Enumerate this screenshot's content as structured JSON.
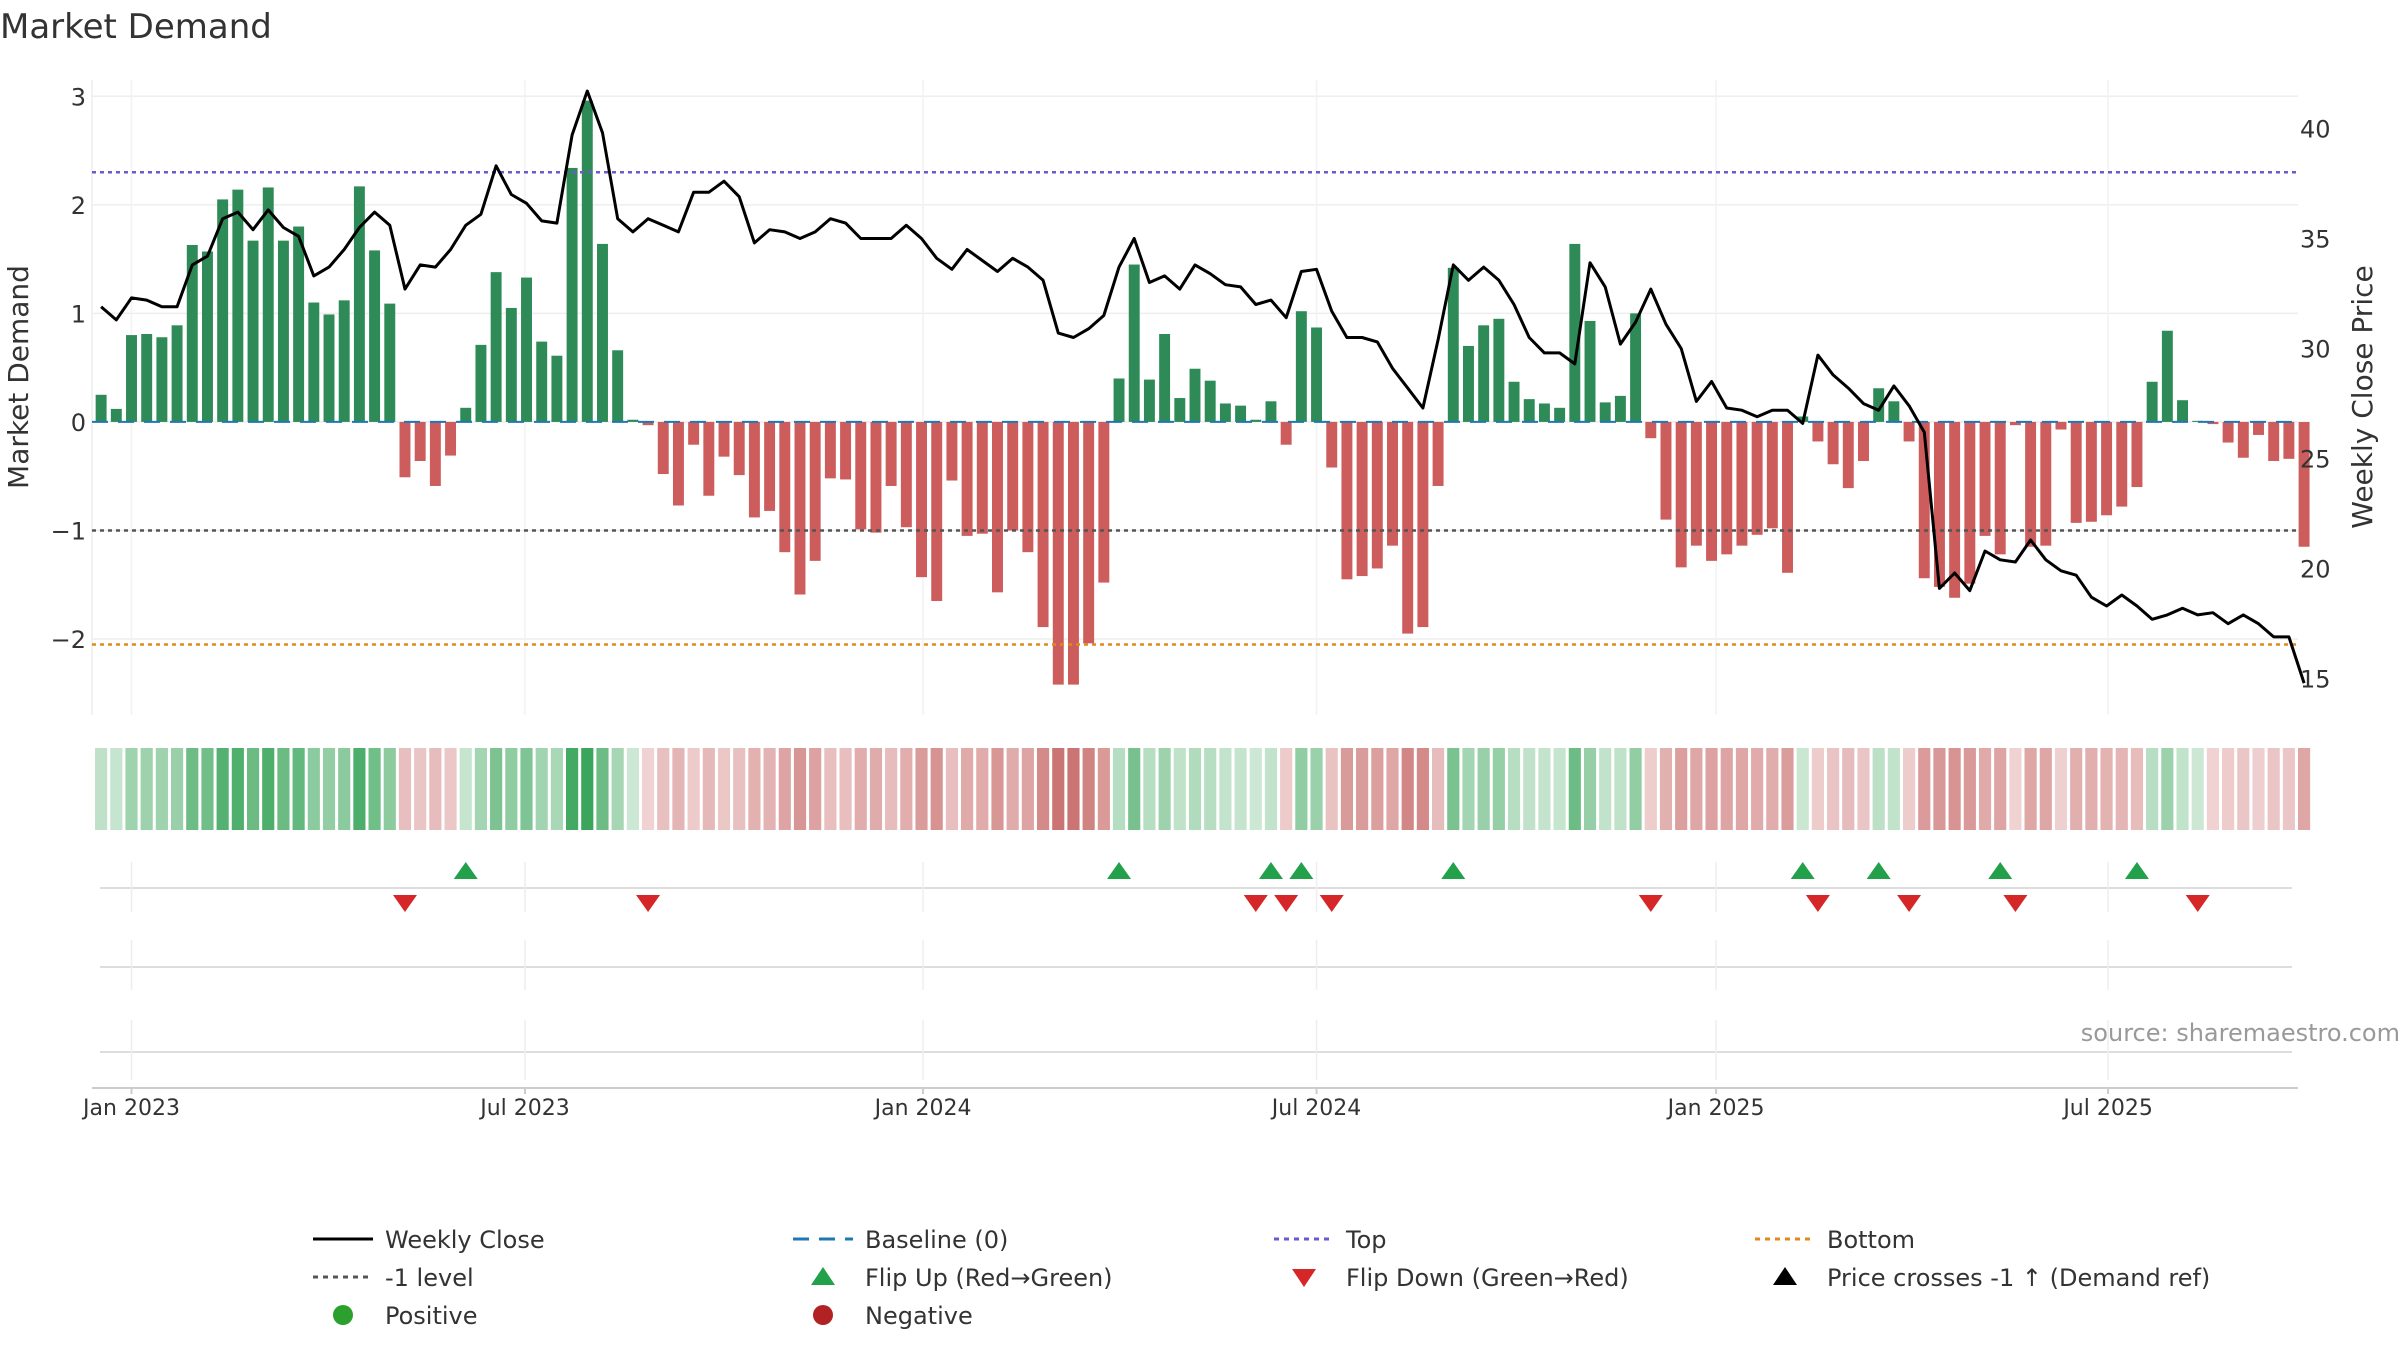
{
  "chart_data": {
    "type": "bar",
    "title": "Market Demand",
    "ylabel_left": "Market Demand",
    "ylabel_right": "Weekly Close Price",
    "source": "source: sharemaestro.com",
    "ylim_left": [
      -2.7,
      3.15
    ],
    "yticks_left": [
      3,
      2,
      1,
      0,
      -1,
      -2
    ],
    "ytick_labels_left": [
      "3",
      "2",
      "1",
      "0",
      "−1",
      "−2"
    ],
    "ylim_right": [
      13.35,
      42.2
    ],
    "yticks_right": [
      40,
      35,
      30,
      25,
      20,
      15
    ],
    "ytick_labels_right": [
      "40",
      "35",
      "30",
      "25",
      "20",
      "15"
    ],
    "x_start_week": -2,
    "x_range_weeks": [
      -2.6,
      142.6
    ],
    "x_ticks": [
      {
        "label": "Jan 2023",
        "week": 0
      },
      {
        "label": "Jul 2023",
        "week": 25.9
      },
      {
        "label": "Jan 2024",
        "week": 52.1
      },
      {
        "label": "Jul 2024",
        "week": 78
      },
      {
        "label": "Jan 2025",
        "week": 104.3
      },
      {
        "label": "Jul 2025",
        "week": 130.1
      }
    ],
    "reference_lines": {
      "top": 2.3,
      "bottom": -2.05,
      "minus_one": -1,
      "baseline": 0
    },
    "demand": [
      0.25,
      0.12,
      0.8,
      0.81,
      0.78,
      0.89,
      1.63,
      1.57,
      2.05,
      2.14,
      1.67,
      2.16,
      1.67,
      1.8,
      1.1,
      0.99,
      1.12,
      2.17,
      1.58,
      1.09,
      -0.51,
      -0.36,
      -0.59,
      -0.31,
      0.13,
      0.71,
      1.38,
      1.05,
      1.33,
      0.74,
      0.61,
      2.34,
      2.96,
      1.64,
      0.66,
      0.02,
      -0.03,
      -0.48,
      -0.77,
      -0.21,
      -0.68,
      -0.32,
      -0.49,
      -0.88,
      -0.82,
      -1.2,
      -1.59,
      -1.28,
      -0.52,
      -0.53,
      -0.99,
      -1.02,
      -0.59,
      -0.97,
      -1.43,
      -1.65,
      -0.54,
      -1.05,
      -1.03,
      -1.57,
      -1.0,
      -1.2,
      -1.89,
      -2.42,
      -2.42,
      -2.04,
      -1.48,
      0.4,
      1.45,
      0.39,
      0.81,
      0.22,
      0.49,
      0.38,
      0.17,
      0.15,
      0.02,
      0.19,
      -0.21,
      1.02,
      0.87,
      -0.42,
      -1.45,
      -1.42,
      -1.35,
      -1.14,
      -1.95,
      -1.89,
      -0.59,
      1.42,
      0.7,
      0.89,
      0.95,
      0.37,
      0.21,
      0.17,
      0.13,
      1.64,
      0.93,
      0.18,
      0.24,
      1.0,
      -0.15,
      -0.9,
      -1.34,
      -1.14,
      -1.28,
      -1.22,
      -1.14,
      -1.04,
      -0.98,
      -1.39,
      0.05,
      -0.18,
      -0.39,
      -0.61,
      -0.36,
      0.31,
      0.19,
      -0.18,
      -1.44,
      -1.52,
      -1.62,
      -1.49,
      -1.05,
      -1.22,
      -0.03,
      -1.15,
      -1.14,
      -0.07,
      -0.93,
      -0.92,
      -0.86,
      -0.78,
      -0.6,
      0.37,
      0.84,
      0.2,
      0.01,
      -0.02,
      -0.19,
      -0.33,
      -0.12,
      -0.36,
      -0.34,
      -1.15
    ],
    "price": [
      31.9,
      31.3,
      32.3,
      32.2,
      31.9,
      31.9,
      33.8,
      34.2,
      35.9,
      36.2,
      35.4,
      36.3,
      35.5,
      35.1,
      33.3,
      33.7,
      34.5,
      35.5,
      36.2,
      35.6,
      32.7,
      33.8,
      33.7,
      34.5,
      35.6,
      36.1,
      38.3,
      37.0,
      36.6,
      35.8,
      35.7,
      39.7,
      41.7,
      39.8,
      35.9,
      35.3,
      35.9,
      35.6,
      35.3,
      37.1,
      37.1,
      37.6,
      36.9,
      34.8,
      35.4,
      35.3,
      35.0,
      35.3,
      35.9,
      35.7,
      35.0,
      35.0,
      35.0,
      35.6,
      35.0,
      34.1,
      33.6,
      34.5,
      34.0,
      33.5,
      34.1,
      33.7,
      33.1,
      30.7,
      30.5,
      30.9,
      31.5,
      33.7,
      35.0,
      33.0,
      33.3,
      32.7,
      33.8,
      33.4,
      32.9,
      32.8,
      32.0,
      32.2,
      31.4,
      33.5,
      33.6,
      31.7,
      30.5,
      30.5,
      30.3,
      29.1,
      28.2,
      27.3,
      30.4,
      33.8,
      33.1,
      33.7,
      33.1,
      32.0,
      30.5,
      29.8,
      29.8,
      29.3,
      33.9,
      32.8,
      30.2,
      31.2,
      32.7,
      31.1,
      30.0,
      27.6,
      28.5,
      27.3,
      27.2,
      26.9,
      27.2,
      27.2,
      26.6,
      29.7,
      28.8,
      28.2,
      27.5,
      27.2,
      28.3,
      27.4,
      26.2,
      19.1,
      19.8,
      19.0,
      20.8,
      20.4,
      20.3,
      21.3,
      20.4,
      19.9,
      19.7,
      18.7,
      18.3,
      18.8,
      18.3,
      17.7,
      17.9,
      18.2,
      17.9,
      18.0,
      17.5,
      17.9,
      17.5,
      16.9,
      16.9,
      14.8
    ],
    "flip_up_weeks": [
      22,
      65,
      75,
      77,
      87,
      110,
      115,
      123,
      132
    ],
    "flip_down_weeks": [
      18,
      34,
      74,
      76,
      79,
      100,
      111,
      117,
      124,
      136
    ],
    "legend": [
      {
        "label": "Weekly Close",
        "marker": "line-solid",
        "color": "#000000"
      },
      {
        "label": "Baseline (0)",
        "marker": "line-dashed",
        "color": "#1f77b4"
      },
      {
        "label": "Top",
        "marker": "line-dotted",
        "color": "#6a5acd"
      },
      {
        "label": "Bottom",
        "marker": "line-dotted",
        "color": "#e08a1e"
      },
      {
        "label": "-1 level",
        "marker": "line-dotted",
        "color": "#555555"
      },
      {
        "label": "Flip Up (Red→Green)",
        "marker": "triangle-up",
        "color": "#22a04a"
      },
      {
        "label": "Flip Down (Green→Red)",
        "marker": "triangle-down",
        "color": "#d62728"
      },
      {
        "label": "Price crosses -1 ↑ (Demand ref)",
        "marker": "triangle-up",
        "color": "#000000"
      },
      {
        "label": "Positive",
        "marker": "circle",
        "color": "#2ca02c"
      },
      {
        "label": "Negative",
        "marker": "circle",
        "color": "#b22222"
      }
    ]
  },
  "colors": {
    "positive_bar": "#2e8b57",
    "negative_bar": "#cd5c5c",
    "flip_up": "#22a04a",
    "flip_down": "#d62728",
    "top_line": "#6a5acd",
    "bottom_line": "#e08a1e",
    "minus_one_line": "#555555",
    "baseline": "#1f77b4",
    "price_line": "#000000",
    "heat_pos_light": "#cde8d4",
    "heat_pos_dark": "#3aa55b",
    "heat_neg_light": "#f0d3d3",
    "heat_neg_dark": "#c97270"
  }
}
